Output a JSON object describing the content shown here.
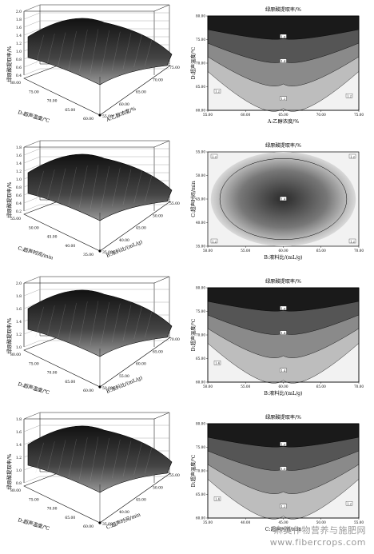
{
  "colors": {
    "surface_dark": "#1a1a1a",
    "surface_light": "#f2f2f2",
    "line": "#000000",
    "watermark": "#9a9a9a"
  },
  "watermark": {
    "cn": "麻类作物营养与施肥网",
    "url": "www.fibercrops.com"
  },
  "chart_data": [
    {
      "type": "surface",
      "zlabel": "绿原酸提取率/%",
      "xlabel": "A:乙醇浓度/%",
      "ylabel": "D:超声温度/℃",
      "z_ticks": [
        "0.4",
        "0.6",
        "0.8",
        "1.0",
        "1.2",
        "1.4",
        "1.6",
        "1.8",
        "2.0"
      ],
      "x_ticks": [
        "55.00",
        "60.00",
        "65.00",
        "70.00",
        "75.00"
      ],
      "y_ticks": [
        "60.00",
        "65.00",
        "70.00",
        "75.00",
        "80.00"
      ]
    },
    {
      "type": "contour",
      "title": "绿原酸提取率/%",
      "xlabel": "A:乙醇浓度/%",
      "ylabel": "D:超声温度/℃",
      "x_ticks": [
        "55.00",
        "60.00",
        "65.00",
        "70.00",
        "75.00"
      ],
      "y_ticks": [
        "60.00",
        "65.00",
        "70.00",
        "75.00",
        "80.00"
      ],
      "contour_labels": [
        "1.6",
        "1.4",
        "1.2",
        "1.2",
        "1.2"
      ]
    },
    {
      "type": "surface",
      "zlabel": "绿原酸提取率/%",
      "xlabel": "B:液料比/(mL/g)",
      "ylabel": "C:超声时间/min",
      "z_ticks": [
        "0.2",
        "0.4",
        "0.6",
        "0.8",
        "1.0",
        "1.2",
        "1.4",
        "1.6",
        "1.8"
      ],
      "x_ticks": [
        "35.00",
        "40.00",
        "45.00",
        "50.00",
        "55.00"
      ],
      "y_ticks": [
        "35.00",
        "40.00",
        "45.00",
        "50.00",
        "55.00"
      ]
    },
    {
      "type": "contour",
      "title": "绿原酸提取率/%",
      "xlabel": "B:液料比/(mL/g)",
      "ylabel": "C:超声时间/min",
      "x_ticks": [
        "50.00",
        "55.00",
        "60.00",
        "65.00",
        "70.00"
      ],
      "y_ticks": [
        "35.00",
        "40.00",
        "45.00",
        "50.00",
        "55.00"
      ],
      "contour_labels": [
        "1.4",
        "1.2",
        "1.2",
        "1.2",
        "1.2"
      ]
    },
    {
      "type": "surface",
      "zlabel": "绿原酸提取率/%",
      "xlabel": "B:液料比/(mL/g)",
      "ylabel": "D:超声温度/℃",
      "z_ticks": [
        "1.0",
        "1.2",
        "1.4",
        "1.6",
        "1.8",
        "2.0"
      ],
      "x_ticks": [
        "50.00",
        "55.00",
        "60.00",
        "65.00",
        "70.00"
      ],
      "y_ticks": [
        "60.00",
        "65.00",
        "70.00",
        "75.00",
        "80.00"
      ]
    },
    {
      "type": "contour",
      "title": "绿原酸提取率/%",
      "xlabel": "B:液料比/(mL/g)",
      "ylabel": "D:超声温度/℃",
      "x_ticks": [
        "50.00",
        "55.00",
        "60.00",
        "65.00",
        "70.00"
      ],
      "y_ticks": [
        "60.00",
        "65.00",
        "70.00",
        "75.00",
        "80.00"
      ],
      "contour_labels": [
        "1.6",
        "1.4",
        "1.4",
        "1.4"
      ]
    },
    {
      "type": "surface",
      "zlabel": "绿原酸提取率/%",
      "xlabel": "C:超声时间/min",
      "ylabel": "D:超声温度/℃",
      "z_ticks": [
        "0.8",
        "1.0",
        "1.2",
        "1.4",
        "1.6",
        "1.8"
      ],
      "x_ticks": [
        "35.00",
        "40.00",
        "45.00",
        "50.00",
        "55.00"
      ],
      "y_ticks": [
        "60.00",
        "65.00",
        "70.00",
        "75.00",
        "80.00"
      ]
    },
    {
      "type": "contour",
      "title": "绿原酸提取率/%",
      "xlabel": "C:超声时间/min",
      "ylabel": "D:超声温度/℃",
      "x_ticks": [
        "35.00",
        "40.00",
        "45.00",
        "50.00",
        "55.00"
      ],
      "y_ticks": [
        "60.00",
        "65.00",
        "70.00",
        "75.00",
        "80.00"
      ],
      "contour_labels": [
        "1.8",
        "1.6",
        "1.4",
        "1.2",
        "1.2"
      ]
    }
  ]
}
